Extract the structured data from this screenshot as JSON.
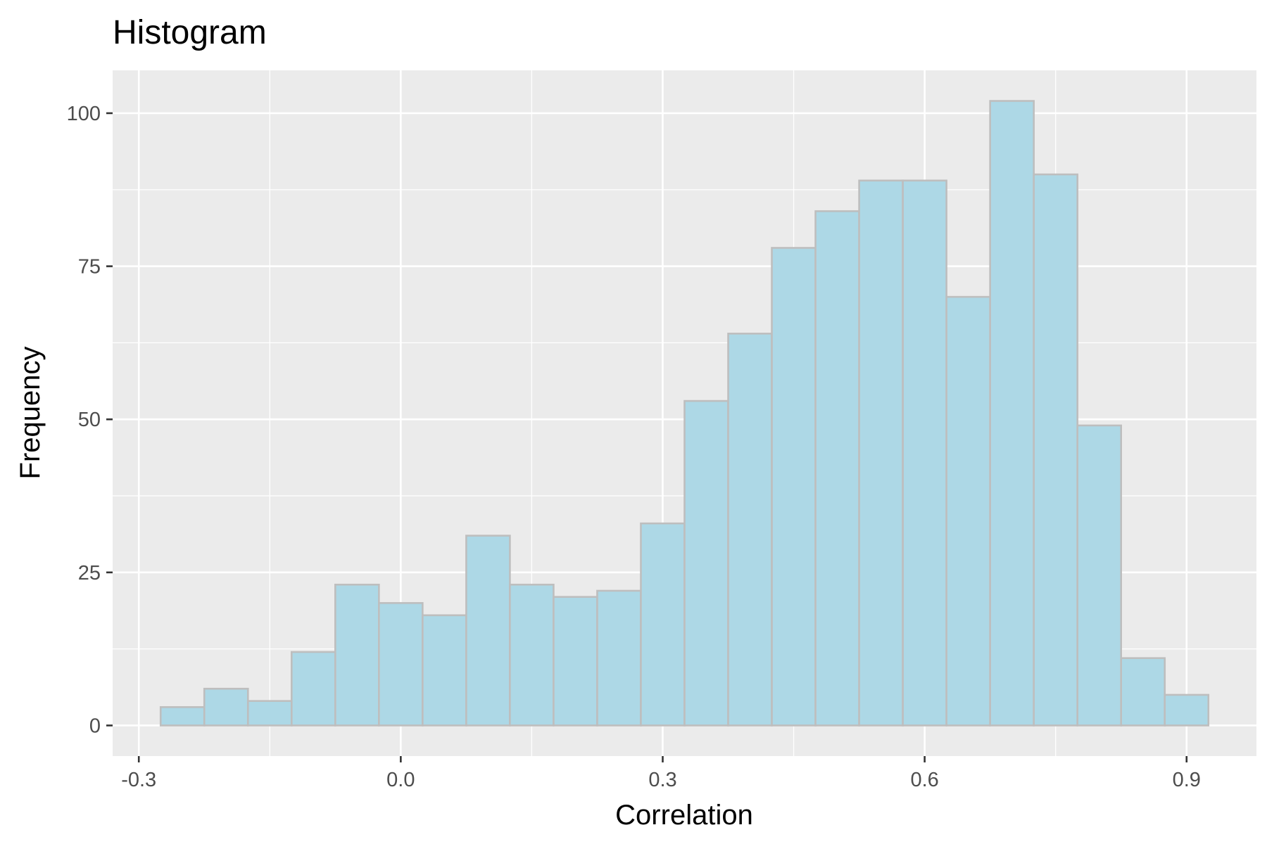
{
  "chart_data": {
    "type": "bar",
    "title": "Histogram",
    "xlabel": "Correlation",
    "ylabel": "Frequency",
    "bin_width": 0.05,
    "bin_starts": [
      -0.275,
      -0.225,
      -0.175,
      -0.125,
      -0.075,
      -0.025,
      0.025,
      0.075,
      0.125,
      0.175,
      0.225,
      0.275,
      0.325,
      0.375,
      0.425,
      0.475,
      0.525,
      0.575,
      0.625,
      0.675,
      0.725,
      0.775,
      0.825,
      0.875
    ],
    "values": [
      3,
      6,
      4,
      12,
      23,
      20,
      18,
      31,
      23,
      21,
      22,
      33,
      53,
      64,
      78,
      84,
      89,
      89,
      70,
      102,
      90,
      49,
      11,
      5
    ],
    "xlim": [
      -0.33,
      0.98
    ],
    "ylim": [
      -5,
      107
    ],
    "x_ticks": [
      -0.3,
      0.0,
      0.3,
      0.6,
      0.9
    ],
    "x_tick_labels": [
      "-0.3",
      "0.0",
      "0.3",
      "0.6",
      "0.9"
    ],
    "y_ticks": [
      0,
      25,
      50,
      75,
      100
    ],
    "y_tick_labels": [
      "0",
      "25",
      "50",
      "75",
      "100"
    ],
    "grid": true,
    "colors": {
      "panel_background": "#ebebeb",
      "grid_major": "#ffffff",
      "bar_fill": "#add8e6",
      "bar_outline": "#bebebe",
      "tick_color": "#333333"
    }
  }
}
